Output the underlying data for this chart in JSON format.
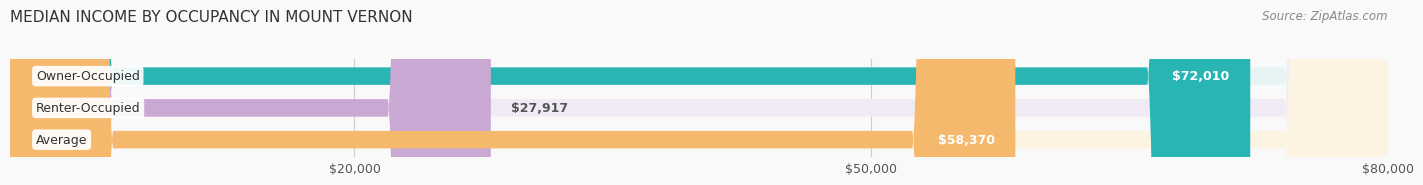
{
  "title": "MEDIAN INCOME BY OCCUPANCY IN MOUNT VERNON",
  "source": "Source: ZipAtlas.com",
  "categories": [
    "Owner-Occupied",
    "Renter-Occupied",
    "Average"
  ],
  "values": [
    72010,
    27917,
    58370
  ],
  "labels": [
    "$72,010",
    "$27,917",
    "$58,370"
  ],
  "bar_colors": [
    "#2ab5b5",
    "#c9a8d4",
    "#f5b96e"
  ],
  "bar_bg_colors": [
    "#e8f4f4",
    "#f0eaf4",
    "#fdf3e3"
  ],
  "xlim": [
    0,
    80000
  ],
  "xticks": [
    20000,
    50000,
    80000
  ],
  "xtick_labels": [
    "$20,000",
    "$50,000",
    "$80,000"
  ],
  "bar_height": 0.55,
  "label_color_inside": "#ffffff",
  "label_color_outside": "#555555",
  "title_fontsize": 11,
  "source_fontsize": 8.5,
  "label_fontsize": 9,
  "tick_fontsize": 9,
  "category_fontsize": 9
}
